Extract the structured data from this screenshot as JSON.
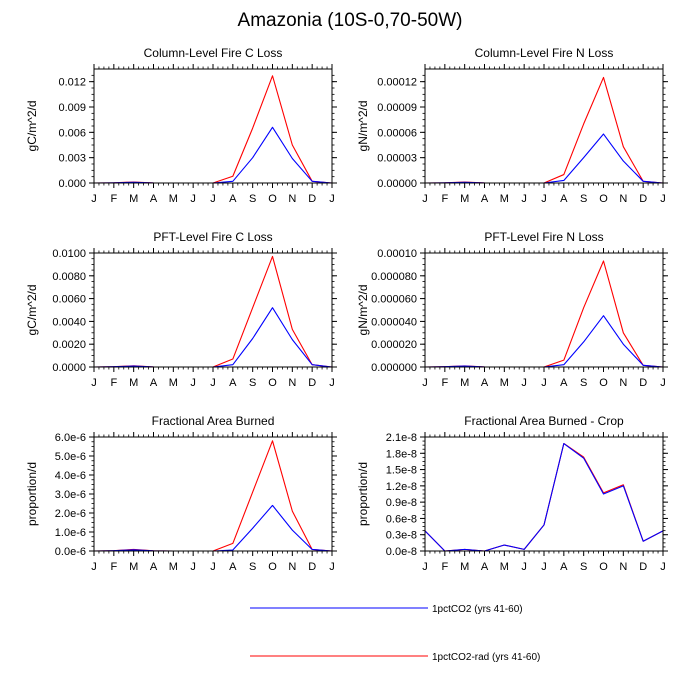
{
  "figure": {
    "title": "Amazonia (10S-0,70-50W)"
  },
  "chart_data": [
    {
      "type": "line",
      "title": "Column-Level Fire C Loss",
      "ylabel": "gC/m^2/d",
      "categories": [
        "J",
        "F",
        "M",
        "A",
        "M",
        "J",
        "J",
        "A",
        "S",
        "O",
        "N",
        "D",
        "J"
      ],
      "ylim": [
        0,
        0.0135
      ],
      "yticks": [
        0,
        0.003,
        0.006,
        0.009,
        0.012
      ],
      "ytick_labels": [
        "0.000",
        "0.003",
        "0.006",
        "0.009",
        "0.012"
      ],
      "series": [
        {
          "name": "1pctCO2 (yrs 41-60)",
          "color": "#0000ff",
          "values": [
            0,
            3e-05,
            8e-05,
            1e-05,
            0,
            0,
            0,
            0.0002,
            0.003,
            0.0066,
            0.0029,
            0.0002,
            0
          ]
        },
        {
          "name": "1pctCO2-rad (yrs 41-60)",
          "color": "#ff0000",
          "values": [
            0,
            3e-05,
            0.00012,
            1e-05,
            0,
            0,
            0,
            0.0008,
            0.0065,
            0.0127,
            0.0045,
            0.0002,
            0
          ]
        }
      ]
    },
    {
      "type": "line",
      "title": "Column-Level Fire N Loss",
      "ylabel": "gN/m^2/d",
      "categories": [
        "J",
        "F",
        "M",
        "A",
        "M",
        "J",
        "J",
        "A",
        "S",
        "O",
        "N",
        "D",
        "J"
      ],
      "ylim": [
        0,
        0.000135
      ],
      "yticks": [
        0,
        3e-05,
        6e-05,
        9e-05,
        0.00012
      ],
      "ytick_labels": [
        "0.00000",
        "0.00003",
        "0.00006",
        "0.00009",
        "0.00012"
      ],
      "series": [
        {
          "name": "1pctCO2 (yrs 41-60)",
          "color": "#0000ff",
          "values": [
            0,
            3e-07,
            8e-07,
            1e-07,
            0,
            0,
            0,
            3e-06,
            3e-05,
            5.8e-05,
            2.6e-05,
            2e-06,
            0
          ]
        },
        {
          "name": "1pctCO2-rad (yrs 41-60)",
          "color": "#ff0000",
          "values": [
            0,
            3e-07,
            1.2e-06,
            1e-07,
            0,
            0,
            0,
            1e-05,
            7e-05,
            0.000125,
            4.3e-05,
            2e-06,
            0
          ]
        }
      ]
    },
    {
      "type": "line",
      "title": "PFT-Level Fire C Loss",
      "ylabel": "gC/m^2/d",
      "categories": [
        "J",
        "F",
        "M",
        "A",
        "M",
        "J",
        "J",
        "A",
        "S",
        "O",
        "N",
        "D",
        "J"
      ],
      "ylim": [
        0,
        0.01
      ],
      "yticks": [
        0,
        0.002,
        0.004,
        0.006,
        0.008,
        0.01
      ],
      "ytick_labels": [
        "0.0000",
        "0.0020",
        "0.0040",
        "0.0060",
        "0.0080",
        "0.0100"
      ],
      "series": [
        {
          "name": "1pctCO2 (yrs 41-60)",
          "color": "#0000ff",
          "values": [
            0,
            3e-05,
            8e-05,
            1e-05,
            0,
            0,
            0,
            0.0002,
            0.0025,
            0.0052,
            0.0024,
            0.0002,
            0
          ]
        },
        {
          "name": "1pctCO2-rad (yrs 41-60)",
          "color": "#ff0000",
          "values": [
            0,
            3e-05,
            0.0001,
            1e-05,
            0,
            0,
            0,
            0.0007,
            0.0052,
            0.0097,
            0.0033,
            0.0002,
            0
          ]
        }
      ]
    },
    {
      "type": "line",
      "title": "PFT-Level Fire N Loss",
      "ylabel": "gN/m^2/d",
      "categories": [
        "J",
        "F",
        "M",
        "A",
        "M",
        "J",
        "J",
        "A",
        "S",
        "O",
        "N",
        "D",
        "J"
      ],
      "ylim": [
        0,
        0.0001
      ],
      "yticks": [
        0,
        2e-05,
        4e-05,
        6e-05,
        8e-05,
        0.0001
      ],
      "ytick_labels": [
        "0.000000",
        "0.000020",
        "0.000040",
        "0.000060",
        "0.000080",
        "0.00010"
      ],
      "series": [
        {
          "name": "1pctCO2 (yrs 41-60)",
          "color": "#0000ff",
          "values": [
            0,
            3e-07,
            8e-07,
            1e-07,
            0,
            0,
            0,
            2e-06,
            2.2e-05,
            4.5e-05,
            2e-05,
            1.5e-06,
            0
          ]
        },
        {
          "name": "1pctCO2-rad (yrs 41-60)",
          "color": "#ff0000",
          "values": [
            0,
            3e-07,
            9e-07,
            1e-07,
            0,
            0,
            0,
            6e-06,
            5.2e-05,
            9.3e-05,
            3e-05,
            1.5e-06,
            0
          ]
        }
      ]
    },
    {
      "type": "line",
      "title": "Fractional Area Burned",
      "ylabel": "proportion/d",
      "categories": [
        "J",
        "F",
        "M",
        "A",
        "M",
        "J",
        "J",
        "A",
        "S",
        "O",
        "N",
        "D",
        "J"
      ],
      "ylim": [
        0,
        6e-06
      ],
      "yticks": [
        0,
        1e-06,
        2e-06,
        3e-06,
        4e-06,
        5e-06,
        6e-06
      ],
      "ytick_labels": [
        "0.0e-6",
        "1.0e-6",
        "2.0e-6",
        "3.0e-6",
        "4.0e-6",
        "5.0e-6",
        "6.0e-6"
      ],
      "series": [
        {
          "name": "1pctCO2 (yrs 41-60)",
          "color": "#0000ff",
          "values": [
            0,
            2e-08,
            6e-08,
            1e-08,
            0,
            0,
            0,
            5e-08,
            1.2e-06,
            2.4e-06,
            1.1e-06,
            8e-08,
            0
          ]
        },
        {
          "name": "1pctCO2-rad (yrs 41-60)",
          "color": "#ff0000",
          "values": [
            0,
            2e-08,
            8e-08,
            1e-08,
            0,
            0,
            0,
            4e-07,
            3.1e-06,
            5.8e-06,
            2.1e-06,
            8e-08,
            0
          ]
        }
      ]
    },
    {
      "type": "line",
      "title": "Fractional Area Burned - Crop",
      "ylabel": "proportion/d",
      "categories": [
        "J",
        "F",
        "M",
        "A",
        "M",
        "J",
        "J",
        "A",
        "S",
        "O",
        "N",
        "D",
        "J"
      ],
      "ylim": [
        0,
        2.1e-08
      ],
      "yticks": [
        0,
        3e-09,
        6e-09,
        9e-09,
        1.2e-08,
        1.5e-08,
        1.8e-08,
        2.1e-08
      ],
      "ytick_labels": [
        "0.0e-8",
        "0.3e-8",
        "0.6e-8",
        "0.9e-8",
        "1.2e-8",
        "1.5e-8",
        "1.8e-8",
        "2.1e-8"
      ],
      "series": [
        {
          "name": "1pctCO2 (yrs 41-60)",
          "color": "#0000ff",
          "values": [
            3.7e-09,
            0,
            3e-10,
            0,
            1.1e-09,
            3e-10,
            4.8e-09,
            1.98e-08,
            1.71e-08,
            1.05e-08,
            1.2e-08,
            1.8e-09,
            3.7e-09
          ]
        },
        {
          "name": "1pctCO2-rad (yrs 41-60)",
          "color": "#ff0000",
          "values": [
            3.7e-09,
            0,
            3e-10,
            0,
            1.1e-09,
            3e-10,
            4.8e-09,
            1.98e-08,
            1.73e-08,
            1.07e-08,
            1.22e-08,
            1.8e-09,
            3.7e-09
          ]
        }
      ]
    }
  ],
  "legend": {
    "entries": [
      {
        "label": "1pctCO2 (yrs 41-60)",
        "color": "#0000ff"
      },
      {
        "label": "1pctCO2-rad (yrs 41-60)",
        "color": "#ff0000"
      }
    ]
  }
}
